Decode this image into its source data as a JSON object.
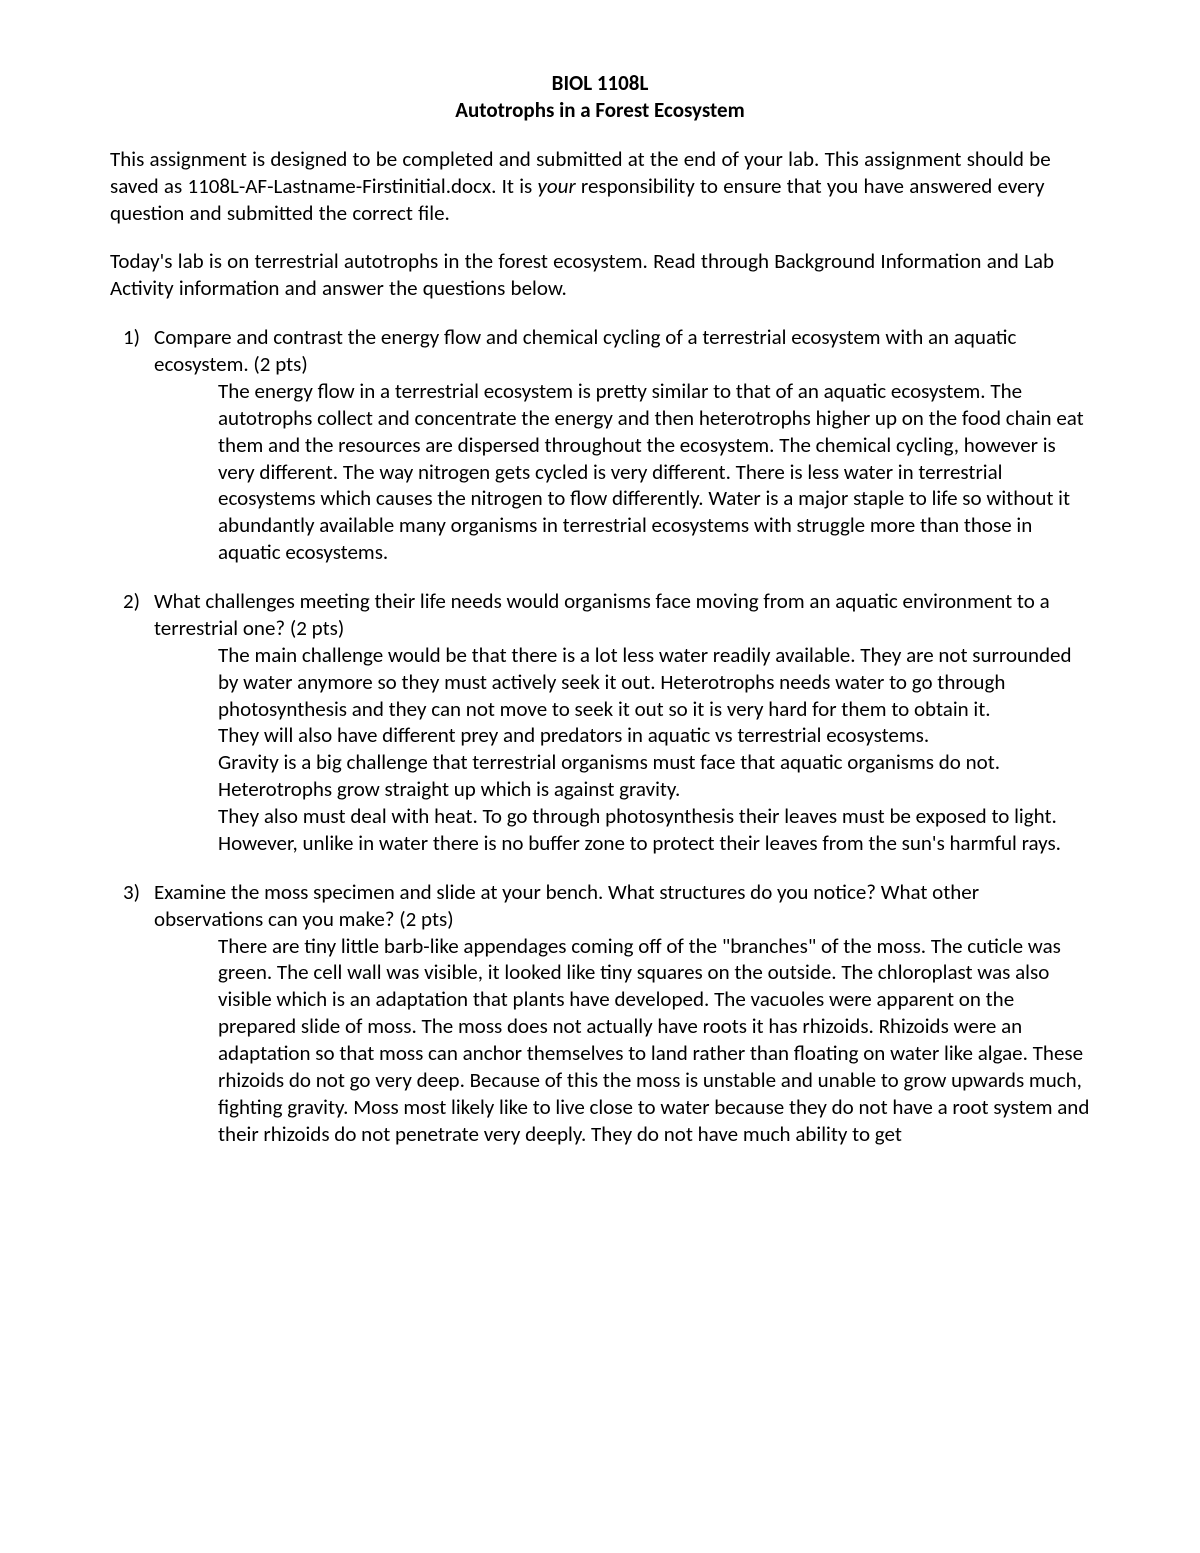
{
  "header": {
    "line1": "BIOL 1108L",
    "line2": "Autotrophs in a Forest Ecosystem"
  },
  "intro": {
    "p1_a": "This assignment is designed to be completed and submitted at the end of your lab. This assignment should be saved as 1108L-AF-Lastname-Firstinitial.docx.  It is ",
    "p1_italic": "your",
    "p1_b": " responsibility to ensure that you have answered every question and submitted the correct file.",
    "p2": "Today's lab is on terrestrial autotrophs in the forest ecosystem. Read through Background Information and Lab Activity information and answer the questions below."
  },
  "questions": [
    {
      "num": "1)",
      "prompt": "Compare and contrast the energy flow and chemical cycling of a terrestrial ecosystem with an aquatic ecosystem. (2 pts)",
      "answer": [
        "The energy flow in a terrestrial ecosystem is pretty similar to that of an aquatic ecosystem. The autotrophs collect and concentrate the energy and then heterotrophs higher up on the food chain eat them and the resources are dispersed throughout the ecosystem. The chemical cycling, however is very different. The way nitrogen gets cycled is very different. There is less water in terrestrial ecosystems which causes the nitrogen to flow differently. Water is a major staple to life so without it abundantly available many organisms in terrestrial ecosystems with struggle more than those in aquatic ecosystems."
      ]
    },
    {
      "num": "2)",
      "prompt": "What challenges meeting their life needs would organisms face moving from an aquatic environment to a terrestrial one? (2 pts)",
      "answer": [
        "The main challenge would be that there is a lot less water readily available. They are not surrounded by water anymore so they must actively seek it out. Heterotrophs needs water to go through photosynthesis and they can not move to seek it out so it is very hard for them to obtain it.",
        "They will also have different prey and predators in aquatic vs terrestrial ecosystems.",
        "Gravity is a big challenge that terrestrial organisms must face that aquatic organisms do not. Heterotrophs grow straight up which is against gravity.",
        "They also must deal with heat. To go through photosynthesis their leaves must be exposed to light. However, unlike in water there is no buffer zone to protect their leaves from the sun's harmful rays."
      ]
    },
    {
      "num": "3)",
      "prompt": "Examine the moss specimen and slide at your bench. What structures do you notice? What other observations can you make? (2 pts)",
      "answer": [
        "There are tiny little barb-like appendages coming off of the \"branches\" of the moss. The cuticle was green. The cell wall was visible, it looked like tiny squares on the outside. The chloroplast was also visible which is an adaptation that plants have developed. The vacuoles were apparent on the prepared slide of moss. The moss does not actually have roots it has rhizoids. Rhizoids were an adaptation so that moss can anchor themselves to land rather than floating on water like algae. These rhizoids do not go very deep. Because of this the moss is unstable and unable to grow upwards much, fighting gravity. Moss most likely like to live close to water because they do not have a root system and their rhizoids do not penetrate very deeply. They do not have much ability to get"
      ]
    }
  ]
}
